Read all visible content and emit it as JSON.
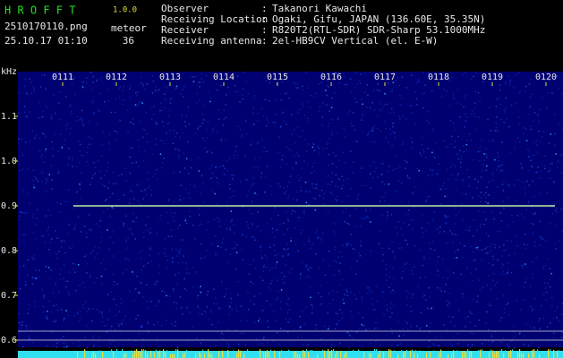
{
  "header": {
    "app": "H R O F F T",
    "version": "1.0.0",
    "file": "2510170110.png",
    "datetime": "25.10.17 01:10",
    "mode": "meteor",
    "count": 36,
    "info": [
      {
        "label": "Observer",
        "separator": ":",
        "value": "Takanori Kawachi"
      },
      {
        "label": "Receiving Location",
        "separator": ":",
        "value": "Ogaki, Gifu, JAPAN (136.60E, 35.35N)"
      },
      {
        "label": "Receiver",
        "separator": ":",
        "value": "R820T2(RTL-SDR) SDR-Sharp 53.1000MHz"
      },
      {
        "label": "Receiving antenna",
        "separator": ":",
        "value": "2el-HB9CV Vertical (el. E-W)"
      }
    ]
  },
  "chart_data": {
    "type": "spectrogram",
    "y_label": "kHz",
    "categories": [
      "0111",
      "0112",
      "0113",
      "0114",
      "0115",
      "0116",
      "0117",
      "0118",
      "0119",
      "0120"
    ],
    "ylim": [
      0.584,
      1.2
    ],
    "yticks": [
      {
        "value": 1.1,
        "label": "1.1"
      },
      {
        "value": 1,
        "label": "1.0"
      },
      0.9,
      0.8,
      0.7,
      0.6
    ],
    "signal_khz": 0.9,
    "color": "#000070"
  }
}
